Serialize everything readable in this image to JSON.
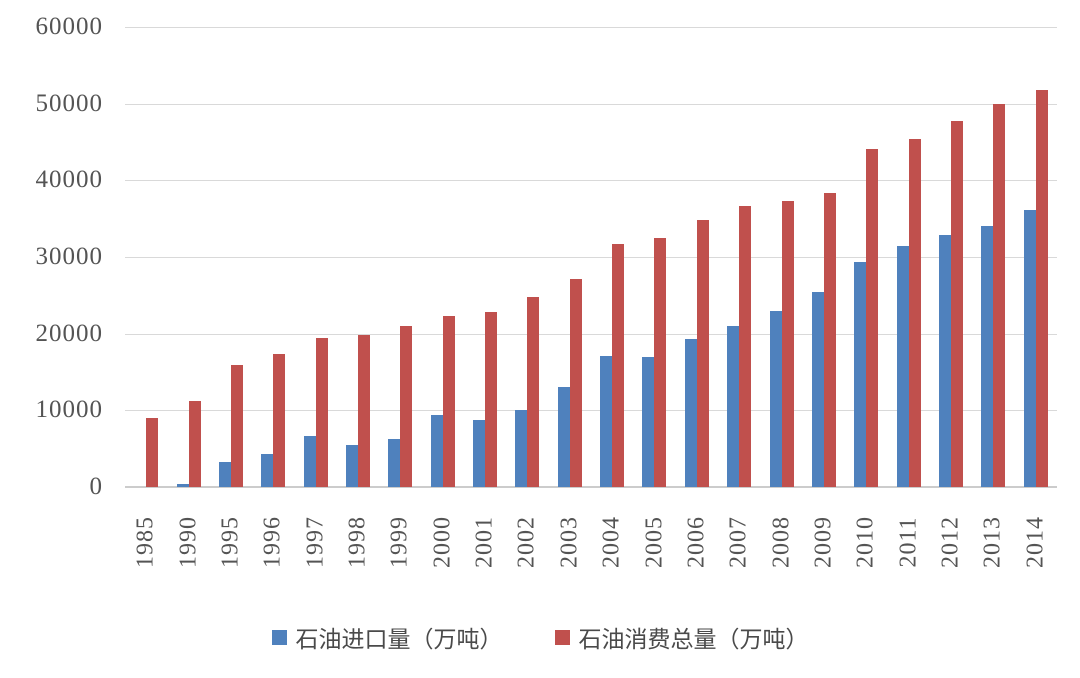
{
  "chart_data": {
    "type": "bar",
    "title": "",
    "xlabel": "",
    "ylabel": "",
    "categories": [
      "1985",
      "1990",
      "1995",
      "1996",
      "1997",
      "1998",
      "1999",
      "2000",
      "2001",
      "2002",
      "2003",
      "2004",
      "2005",
      "2006",
      "2007",
      "2008",
      "2009",
      "2010",
      "2011",
      "2012",
      "2013",
      "2014"
    ],
    "series": [
      {
        "name": "石油进口量（万吨）",
        "color": "#4F81BD",
        "values": [
          0,
          450,
          3300,
          4300,
          6700,
          5500,
          6300,
          9400,
          8800,
          10000,
          13000,
          17100,
          16900,
          19300,
          21000,
          22900,
          25500,
          29300,
          31500,
          32900,
          34100,
          36100
        ]
      },
      {
        "name": "石油消费总量（万吨）",
        "color": "#C0504D",
        "values": [
          9000,
          11200,
          15900,
          17400,
          19500,
          19800,
          21000,
          22300,
          22800,
          24800,
          27100,
          31700,
          32500,
          34800,
          36600,
          37300,
          38400,
          44100,
          45400,
          47800,
          50000,
          51800
        ]
      }
    ],
    "ylim": [
      0,
      60000
    ],
    "yticks": [
      0,
      10000,
      20000,
      30000,
      40000,
      50000,
      60000
    ],
    "grid": "horizontal",
    "legend_position": "bottom",
    "x_tick_rotation": 90
  },
  "style": {
    "grid_color": "#d9d9d9",
    "axis_line_color": "#cccccc",
    "tick_label_color": "#545454",
    "background": "#ffffff"
  }
}
